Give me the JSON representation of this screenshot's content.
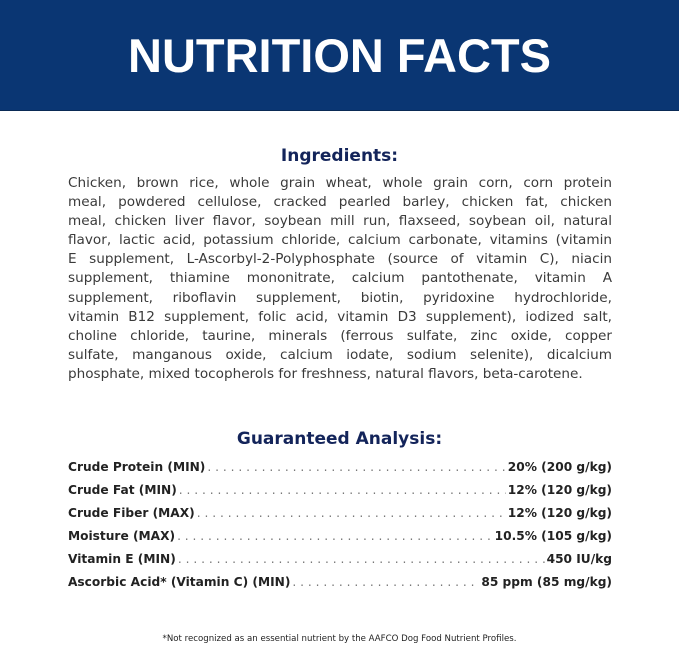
{
  "header": {
    "title": "NUTRITION FACTS",
    "background_color": "#0a3673"
  },
  "ingredients": {
    "heading": "Ingredients:",
    "lines": [
      "Chicken, brown rice, whole grain wheat, whole grain corn, corn protein",
      "meal, powdered cellulose, cracked pearled barley, chicken fat, chicken",
      "meal, chicken liver flavor, soybean mill run, flaxseed, soybean oil, natural",
      "flavor, lactic acid, potassium chloride, calcium carbonate, vitamins (vitamin",
      "E supplement, L-Ascorbyl-2-Polyphosphate (source of vitamin C), niacin",
      "supplement, thiamine mononitrate, calcium pantothenate, vitamin A",
      "supplement, riboflavin supplement, biotin, pyridoxine hydrochloride,",
      "vitamin B12 supplement, folic acid, vitamin D3 supplement), iodized salt,",
      "choline chloride, taurine, minerals (ferrous sulfate, zinc oxide, copper",
      "sulfate, manganous oxide, calcium iodate, sodium selenite), dicalcium",
      "phosphate, mixed tocopherols for freshness, natural flavors, beta-carotene."
    ]
  },
  "analysis": {
    "heading": "Guaranteed Analysis:",
    "rows": [
      {
        "label": "Crude Protein (MIN)",
        "value": "20% (200 g/kg)"
      },
      {
        "label": "Crude Fat (MIN)",
        "value": "12% (120 g/kg)"
      },
      {
        "label": "Crude Fiber (MAX)",
        "value": "12% (120 g/kg)"
      },
      {
        "label": "Moisture (MAX)",
        "value": "10.5% (105 g/kg)"
      },
      {
        "label": "Vitamin E (MIN)",
        "value": "450 IU/kg"
      },
      {
        "label": "Ascorbic Acid* (Vitamin C) (MIN)",
        "value": "85 ppm (85 mg/kg)"
      }
    ]
  },
  "footnote": "*Not recognized as an essential nutrient by the AAFCO Dog Food Nutrient Profiles."
}
